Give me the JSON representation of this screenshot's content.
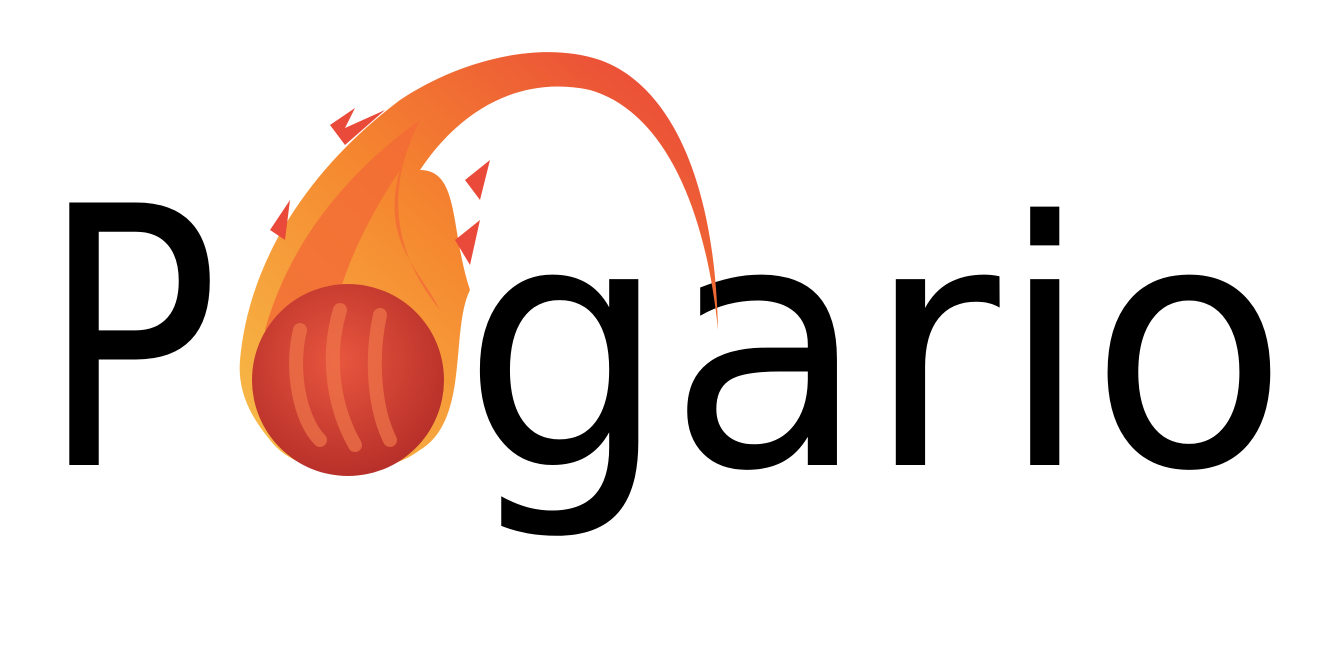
{
  "logo": {
    "before": "P",
    "after": "gario"
  }
}
